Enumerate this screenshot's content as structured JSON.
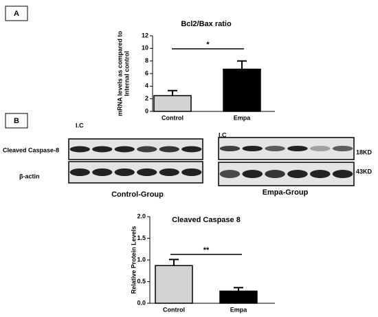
{
  "panel_labels": [
    "A",
    "B"
  ],
  "blot": {
    "row_labels": [
      "Cleaved Caspase-8",
      "β-actin"
    ],
    "size_labels": [
      "18KD",
      "43KD"
    ],
    "lane_labels": [
      "I.C",
      "I.C"
    ],
    "group_labels": [
      "Control-Group",
      "Empa-Group"
    ]
  },
  "chart_data": [
    {
      "type": "bar",
      "title": "Bcl2/Bax ratio",
      "ylabel": [
        "mRNA levels as compared to",
        "Internal control"
      ],
      "categories": [
        "Control",
        "Empa"
      ],
      "values": [
        2.5,
        6.7
      ],
      "errors": [
        0.8,
        1.3
      ],
      "colors": [
        "#d3d3d3",
        "#000000"
      ],
      "ylim": [
        0,
        12
      ],
      "yticks": [
        0,
        2,
        4,
        6,
        8,
        10,
        12
      ],
      "annotation": "*"
    },
    {
      "type": "bar",
      "title": "Cleaved Caspase 8",
      "ylabel": [
        "Relative Protein Levels"
      ],
      "categories": [
        "Control",
        "Empa"
      ],
      "values": [
        0.87,
        0.28
      ],
      "errors": [
        0.14,
        0.08
      ],
      "colors": [
        "#d3d3d3",
        "#000000"
      ],
      "ylim": [
        0,
        2.0
      ],
      "yticks": [
        {
          "value": 0,
          "label": "0.0"
        },
        {
          "value": 0.5,
          "label": "0.5"
        },
        {
          "value": 1.0,
          "label": "1.0"
        },
        {
          "value": 1.5,
          "label": "1.5"
        },
        {
          "value": 2.0,
          "label": "2.0"
        }
      ],
      "annotation": "**"
    }
  ]
}
